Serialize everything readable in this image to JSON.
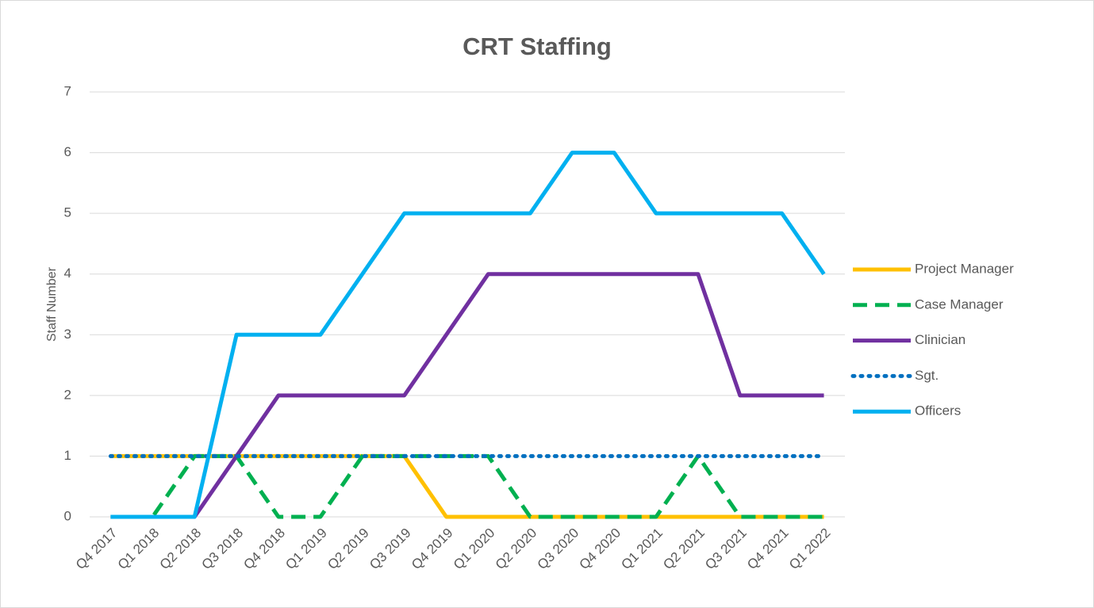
{
  "chart_data": {
    "type": "line",
    "title": "CRT Staffing",
    "y_label": "Staff Number",
    "categories": [
      "Q4 2017",
      "Q1 2018",
      "Q2 2018",
      "Q3 2018",
      "Q4 2018",
      "Q1 2019",
      "Q2 2019",
      "Q3 2019",
      "Q4 2019",
      "Q1 2020",
      "Q2 2020",
      "Q3 2020",
      "Q4 2020",
      "Q1 2021",
      "Q2 2021",
      "Q3 2021",
      "Q4 2021",
      "Q1 2022"
    ],
    "series": [
      {
        "name": "Project Manager",
        "color": "#ffc000",
        "dash": "solid",
        "values": [
          1,
          1,
          1,
          1,
          1,
          1,
          1,
          1,
          0,
          0,
          0,
          0,
          0,
          0,
          0,
          0,
          0,
          0
        ]
      },
      {
        "name": "Case Manager",
        "color": "#00b050",
        "dash": "dash",
        "values": [
          0,
          0,
          1,
          1,
          0,
          0,
          1,
          1,
          1,
          1,
          0,
          0,
          0,
          0,
          1,
          0,
          0,
          0
        ]
      },
      {
        "name": "Clinician",
        "color": "#7030a0",
        "dash": "solid",
        "values": [
          0,
          0,
          0,
          1,
          2,
          2,
          2,
          2,
          3,
          4,
          4,
          4,
          4,
          4,
          4,
          2,
          2,
          2
        ]
      },
      {
        "name": "Sgt.",
        "color": "#0070c0",
        "dash": "dot",
        "values": [
          1,
          1,
          1,
          1,
          1,
          1,
          1,
          1,
          1,
          1,
          1,
          1,
          1,
          1,
          1,
          1,
          1,
          1
        ]
      },
      {
        "name": "Officers",
        "color": "#00b0f0",
        "dash": "solid",
        "values": [
          0,
          0,
          0,
          3,
          3,
          3,
          4,
          5,
          5,
          5,
          5,
          6,
          6,
          5,
          5,
          5,
          5,
          4
        ]
      }
    ],
    "ylim": [
      0,
      7
    ],
    "yticks": [
      0,
      1,
      2,
      3,
      4,
      5,
      6,
      7
    ],
    "grid": true,
    "legend": "right"
  }
}
